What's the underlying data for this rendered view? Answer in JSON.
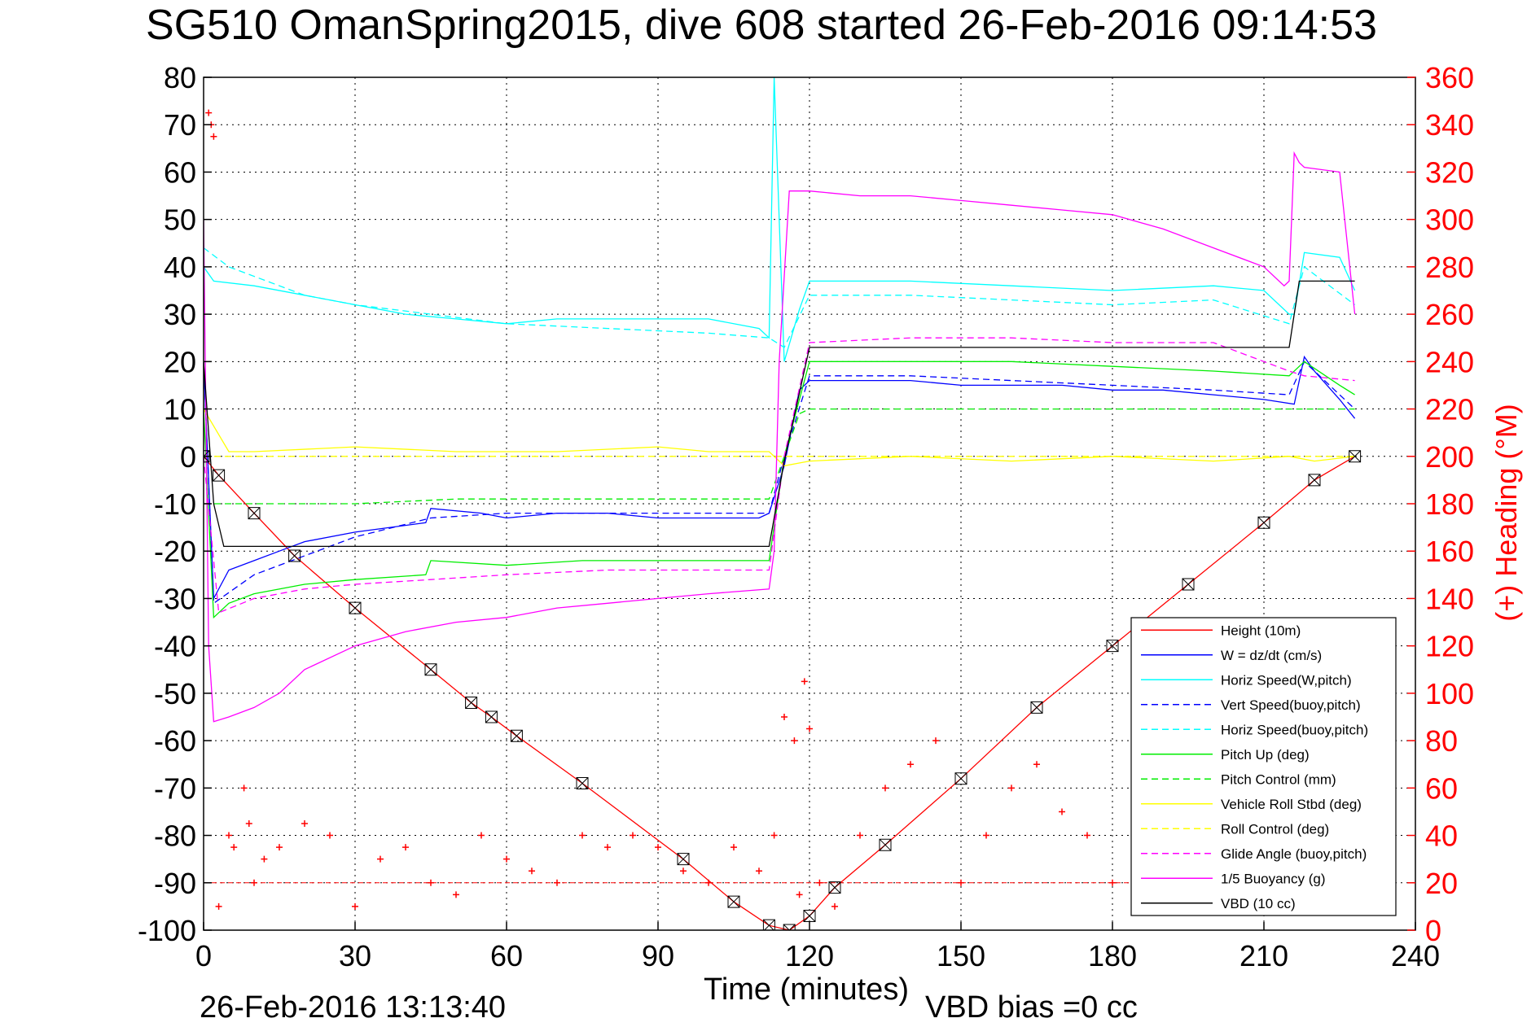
{
  "chart_data": {
    "type": "line",
    "title": "SG510 OmanSpring2015, dive 608 started 26-Feb-2016 09:14:53",
    "xlabel": "Time (minutes)",
    "ylabel_right": "(+) Heading (°M)",
    "footer_left": "26-Feb-2016 13:13:40",
    "footer_right": "VBD bias =0 cc",
    "xlim": [
      0,
      240
    ],
    "ylim": [
      -100,
      80
    ],
    "ylim_right": [
      0,
      360
    ],
    "xticks": [
      "0",
      "30",
      "60",
      "90",
      "120",
      "150",
      "180",
      "210",
      "240"
    ],
    "yticks": [
      "80",
      "70",
      "60",
      "50",
      "40",
      "30",
      "20",
      "10",
      "0",
      "-10",
      "-20",
      "-30",
      "-40",
      "-50",
      "-60",
      "-70",
      "-80",
      "-90",
      "-100"
    ],
    "yticks_right": [
      "360",
      "340",
      "320",
      "300",
      "280",
      "260",
      "240",
      "220",
      "200",
      "180",
      "160",
      "140",
      "120",
      "100",
      "80",
      "60",
      "40",
      "20",
      "0"
    ],
    "grid": true,
    "legend_position": "bottom-right",
    "colors": {
      "height": "#ff0000",
      "w": "#0000ff",
      "horiz": "#00ffff",
      "pitch": "#00ee00",
      "roll": "#ffff00",
      "glide": "#ff00ff",
      "vbd": "#000000",
      "heading": "#ff0000"
    },
    "series": [
      {
        "name": "Height (10m)",
        "color": "#ff0000",
        "dash": false,
        "x": [
          0,
          3,
          10,
          18,
          30,
          45,
          53,
          57,
          62,
          75,
          95,
          105,
          112,
          116,
          120,
          125,
          135,
          150,
          165,
          180,
          195,
          210,
          220,
          228
        ],
        "y": [
          0,
          -4,
          -12,
          -21,
          -32,
          -45,
          -52,
          -55,
          -59,
          -69,
          -85,
          -94,
          -99,
          -100,
          -97,
          -91,
          -82,
          -68,
          -53,
          -40,
          -27,
          -14,
          -5,
          0
        ]
      },
      {
        "name": "W = dz/dt (cm/s)",
        "color": "#0000ff",
        "dash": false,
        "x": [
          0,
          2,
          5,
          10,
          15,
          20,
          30,
          44,
          45,
          55,
          60,
          70,
          80,
          90,
          100,
          110,
          112,
          115,
          118,
          120,
          130,
          140,
          150,
          160,
          170,
          180,
          190,
          200,
          210,
          216,
          218,
          220,
          225,
          228
        ],
        "y": [
          20,
          -30,
          -24,
          -22,
          -20,
          -18,
          -16,
          -14,
          -11,
          -12,
          -13,
          -12,
          -12,
          -13,
          -13,
          -13,
          -12,
          -2,
          14,
          16,
          16,
          16,
          15,
          15,
          15,
          14,
          14,
          13,
          12,
          11,
          21,
          18,
          12,
          8
        ]
      },
      {
        "name": "Horiz Speed(W,pitch)",
        "color": "#00ffff",
        "dash": false,
        "x": [
          0,
          2,
          10,
          20,
          30,
          40,
          50,
          60,
          70,
          80,
          90,
          100,
          110,
          112,
          113,
          115,
          118,
          120,
          140,
          160,
          180,
          200,
          210,
          215,
          216,
          218,
          225,
          228
        ],
        "y": [
          40,
          37,
          36,
          34,
          32,
          30,
          29,
          28,
          29,
          29,
          29,
          29,
          27,
          25,
          80,
          20,
          31,
          37,
          37,
          36,
          35,
          36,
          35,
          30,
          30,
          43,
          42,
          35
        ]
      },
      {
        "name": "Vert Speed(buoy,pitch)",
        "color": "#0000ff",
        "dash": true,
        "x": [
          0,
          2,
          10,
          20,
          30,
          45,
          60,
          80,
          100,
          112,
          115,
          120,
          140,
          160,
          180,
          200,
          215,
          218,
          228
        ],
        "y": [
          20,
          -31,
          -25,
          -21,
          -17,
          -13,
          -12,
          -12,
          -12,
          -12,
          0,
          17,
          17,
          16,
          15,
          14,
          13,
          20,
          10
        ]
      },
      {
        "name": "Horiz Speed(buoy,pitch)",
        "color": "#00ffff",
        "dash": true,
        "x": [
          0,
          5,
          20,
          30,
          45,
          60,
          80,
          100,
          112,
          115,
          120,
          140,
          160,
          180,
          200,
          215,
          218,
          228
        ],
        "y": [
          44,
          40,
          34,
          32,
          30,
          28,
          27,
          26,
          25,
          23,
          34,
          34,
          33,
          32,
          33,
          28,
          40,
          32
        ]
      },
      {
        "name": "Pitch Up (deg)",
        "color": "#00ee00",
        "dash": false,
        "x": [
          0,
          2,
          5,
          10,
          20,
          30,
          44,
          45,
          60,
          75,
          90,
          100,
          112,
          115,
          120,
          140,
          160,
          180,
          200,
          215,
          218,
          225,
          228
        ],
        "y": [
          10,
          -34,
          -31,
          -29,
          -27,
          -26,
          -25,
          -22,
          -23,
          -22,
          -22,
          -22,
          -22,
          0,
          20,
          20,
          20,
          19,
          18,
          17,
          20,
          15,
          13
        ]
      },
      {
        "name": "Pitch Control (mm)",
        "color": "#00ee00",
        "dash": true,
        "x": [
          0,
          3,
          10,
          30,
          50,
          70,
          90,
          112,
          118,
          120,
          150,
          180,
          210,
          216,
          217,
          228
        ],
        "y": [
          -10,
          -10,
          -10,
          -10,
          -9,
          -9,
          -9,
          -9,
          9,
          10,
          10,
          10,
          10,
          10,
          10,
          10
        ]
      },
      {
        "name": "Vehicle Roll Stbd (deg)",
        "color": "#ffff00",
        "dash": false,
        "x": [
          0,
          5,
          10,
          30,
          50,
          70,
          90,
          100,
          112,
          115,
          120,
          140,
          160,
          180,
          200,
          215,
          220,
          228
        ],
        "y": [
          10,
          1,
          1,
          2,
          1,
          1,
          2,
          1,
          1,
          -2,
          -1,
          0,
          -1,
          0,
          -1,
          0,
          -1,
          0
        ]
      },
      {
        "name": "Roll Control (deg)",
        "color": "#ffff00",
        "dash": true,
        "x": [
          0,
          228
        ],
        "y": [
          0,
          0
        ]
      },
      {
        "name": "Glide Angle (buoy,pitch)",
        "color": "#ff00ff",
        "dash": true,
        "x": [
          0,
          3,
          10,
          20,
          30,
          45,
          60,
          80,
          100,
          112,
          115,
          120,
          140,
          160,
          180,
          200,
          215,
          218,
          228
        ],
        "y": [
          0,
          -33,
          -30,
          -28,
          -27,
          -26,
          -25,
          -24,
          -24,
          -24,
          0,
          24,
          25,
          25,
          24,
          24,
          18,
          17,
          16
        ]
      },
      {
        "name": "1/5 Buoyancy (g)",
        "color": "#ff00ff",
        "dash": false,
        "x": [
          0,
          1,
          2,
          5,
          10,
          15,
          20,
          30,
          40,
          50,
          60,
          70,
          80,
          90,
          100,
          112,
          113,
          114,
          116,
          118,
          120,
          130,
          140,
          150,
          160,
          170,
          180,
          190,
          200,
          210,
          214,
          215,
          216,
          217,
          218,
          225,
          228
        ],
        "y": [
          50,
          -40,
          -56,
          -55,
          -53,
          -50,
          -45,
          -40,
          -37,
          -35,
          -34,
          -32,
          -31,
          -30,
          -29,
          -28,
          -20,
          20,
          56,
          56,
          56,
          55,
          55,
          54,
          53,
          52,
          51,
          48,
          44,
          40,
          36,
          37,
          64,
          62,
          61,
          60,
          30
        ]
      },
      {
        "name": "VBD (10 cc)",
        "color": "#000000",
        "dash": false,
        "x": [
          0,
          2,
          4,
          30,
          60,
          90,
          112,
          115,
          120,
          150,
          180,
          215,
          216,
          217,
          228
        ],
        "y": [
          20,
          -10,
          -19,
          -19,
          -19,
          -19,
          -19,
          -1,
          23,
          23,
          23,
          23,
          30,
          37,
          37
        ]
      }
    ],
    "heading": {
      "name": "Heading",
      "x": [
        1,
        1.5,
        2,
        3,
        5,
        6,
        8,
        9,
        10,
        12,
        15,
        20,
        25,
        30,
        35,
        40,
        45,
        50,
        55,
        60,
        65,
        70,
        75,
        80,
        85,
        90,
        95,
        100,
        105,
        110,
        113,
        115,
        117,
        118,
        119,
        120,
        122,
        125,
        130,
        135,
        140,
        145,
        150,
        155,
        160,
        165,
        170,
        175,
        180,
        185,
        190,
        195,
        200,
        205,
        210,
        215,
        220,
        225
      ],
      "y": [
        345,
        340,
        335,
        10,
        40,
        35,
        60,
        45,
        20,
        30,
        35,
        45,
        40,
        10,
        30,
        35,
        20,
        15,
        40,
        30,
        25,
        20,
        40,
        35,
        40,
        35,
        25,
        20,
        35,
        25,
        40,
        90,
        80,
        15,
        105,
        85,
        20,
        10,
        40,
        60,
        70,
        80,
        20,
        40,
        60,
        70,
        50,
        40,
        20,
        50,
        70,
        30,
        20,
        60,
        60,
        70,
        10,
        50
      ]
    },
    "legend_items": [
      {
        "label": "Height (10m)",
        "color": "#ff0000",
        "dash": false
      },
      {
        "label": "W = dz/dt (cm/s)",
        "color": "#0000ff",
        "dash": false
      },
      {
        "label": "Horiz Speed(W,pitch)",
        "color": "#00ffff",
        "dash": false
      },
      {
        "label": "Vert Speed(buoy,pitch)",
        "color": "#0000ff",
        "dash": true
      },
      {
        "label": "Horiz Speed(buoy,pitch)",
        "color": "#00ffff",
        "dash": true
      },
      {
        "label": "Pitch Up (deg)",
        "color": "#00ee00",
        "dash": false
      },
      {
        "label": "Pitch Control (mm)",
        "color": "#00ee00",
        "dash": true
      },
      {
        "label": "Vehicle Roll Stbd (deg)",
        "color": "#ffff00",
        "dash": false
      },
      {
        "label": "Roll Control (deg)",
        "color": "#ffff00",
        "dash": true
      },
      {
        "label": "Glide Angle (buoy,pitch)",
        "color": "#ff00ff",
        "dash": true
      },
      {
        "label": "1/5 Buoyancy (g)",
        "color": "#ff00ff",
        "dash": false
      },
      {
        "label": "VBD (10 cc)",
        "color": "#000000",
        "dash": false
      }
    ]
  }
}
